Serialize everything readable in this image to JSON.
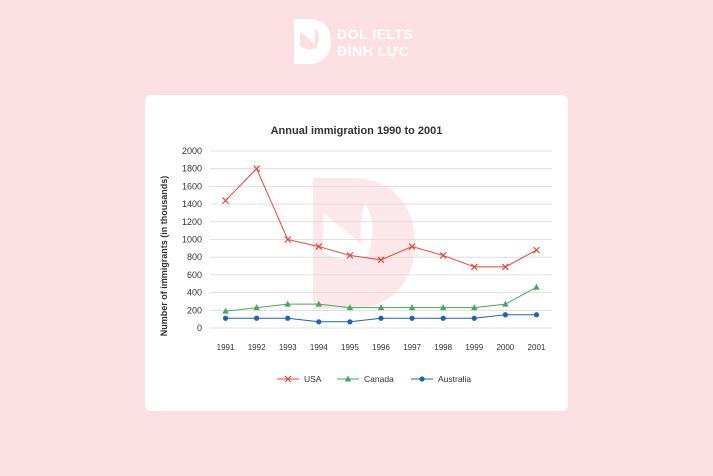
{
  "brand": {
    "line1": "DOL IELTS",
    "line2": "ĐÌNH LỰC",
    "mark_icon": "dol-logo-icon",
    "text_color": "#ffffff"
  },
  "colors": {
    "page_background": "#fbdfe3",
    "card_background": "#ffffff",
    "grid": "#d9d9d9",
    "watermark": "#f6c9cf"
  },
  "chart_data": {
    "type": "line",
    "title": "Annual immigration 1990 to 2001",
    "xlabel": "",
    "ylabel": "Number of immigrants (in thousands)",
    "categories": [
      "1991",
      "1992",
      "1993",
      "1994",
      "1995",
      "1996",
      "1997",
      "1998",
      "1999",
      "2000",
      "2001"
    ],
    "ylim": [
      0,
      2000
    ],
    "yticks": [
      0,
      200,
      400,
      600,
      800,
      1000,
      1200,
      1400,
      1600,
      1800,
      2000
    ],
    "grid": true,
    "legend_position": "bottom",
    "series": [
      {
        "name": "USA",
        "marker": "x",
        "color": "#e9453a",
        "values": [
          1440,
          1800,
          1000,
          920,
          820,
          770,
          920,
          820,
          690,
          690,
          880
        ]
      },
      {
        "name": "Canada",
        "marker": "triangle",
        "color": "#46a95a",
        "values": [
          190,
          230,
          270,
          270,
          230,
          230,
          230,
          230,
          230,
          270,
          460
        ]
      },
      {
        "name": "Australia",
        "marker": "circle",
        "color": "#1e63b8",
        "values": [
          110,
          110,
          110,
          70,
          70,
          110,
          110,
          110,
          110,
          150,
          150
        ]
      }
    ]
  }
}
